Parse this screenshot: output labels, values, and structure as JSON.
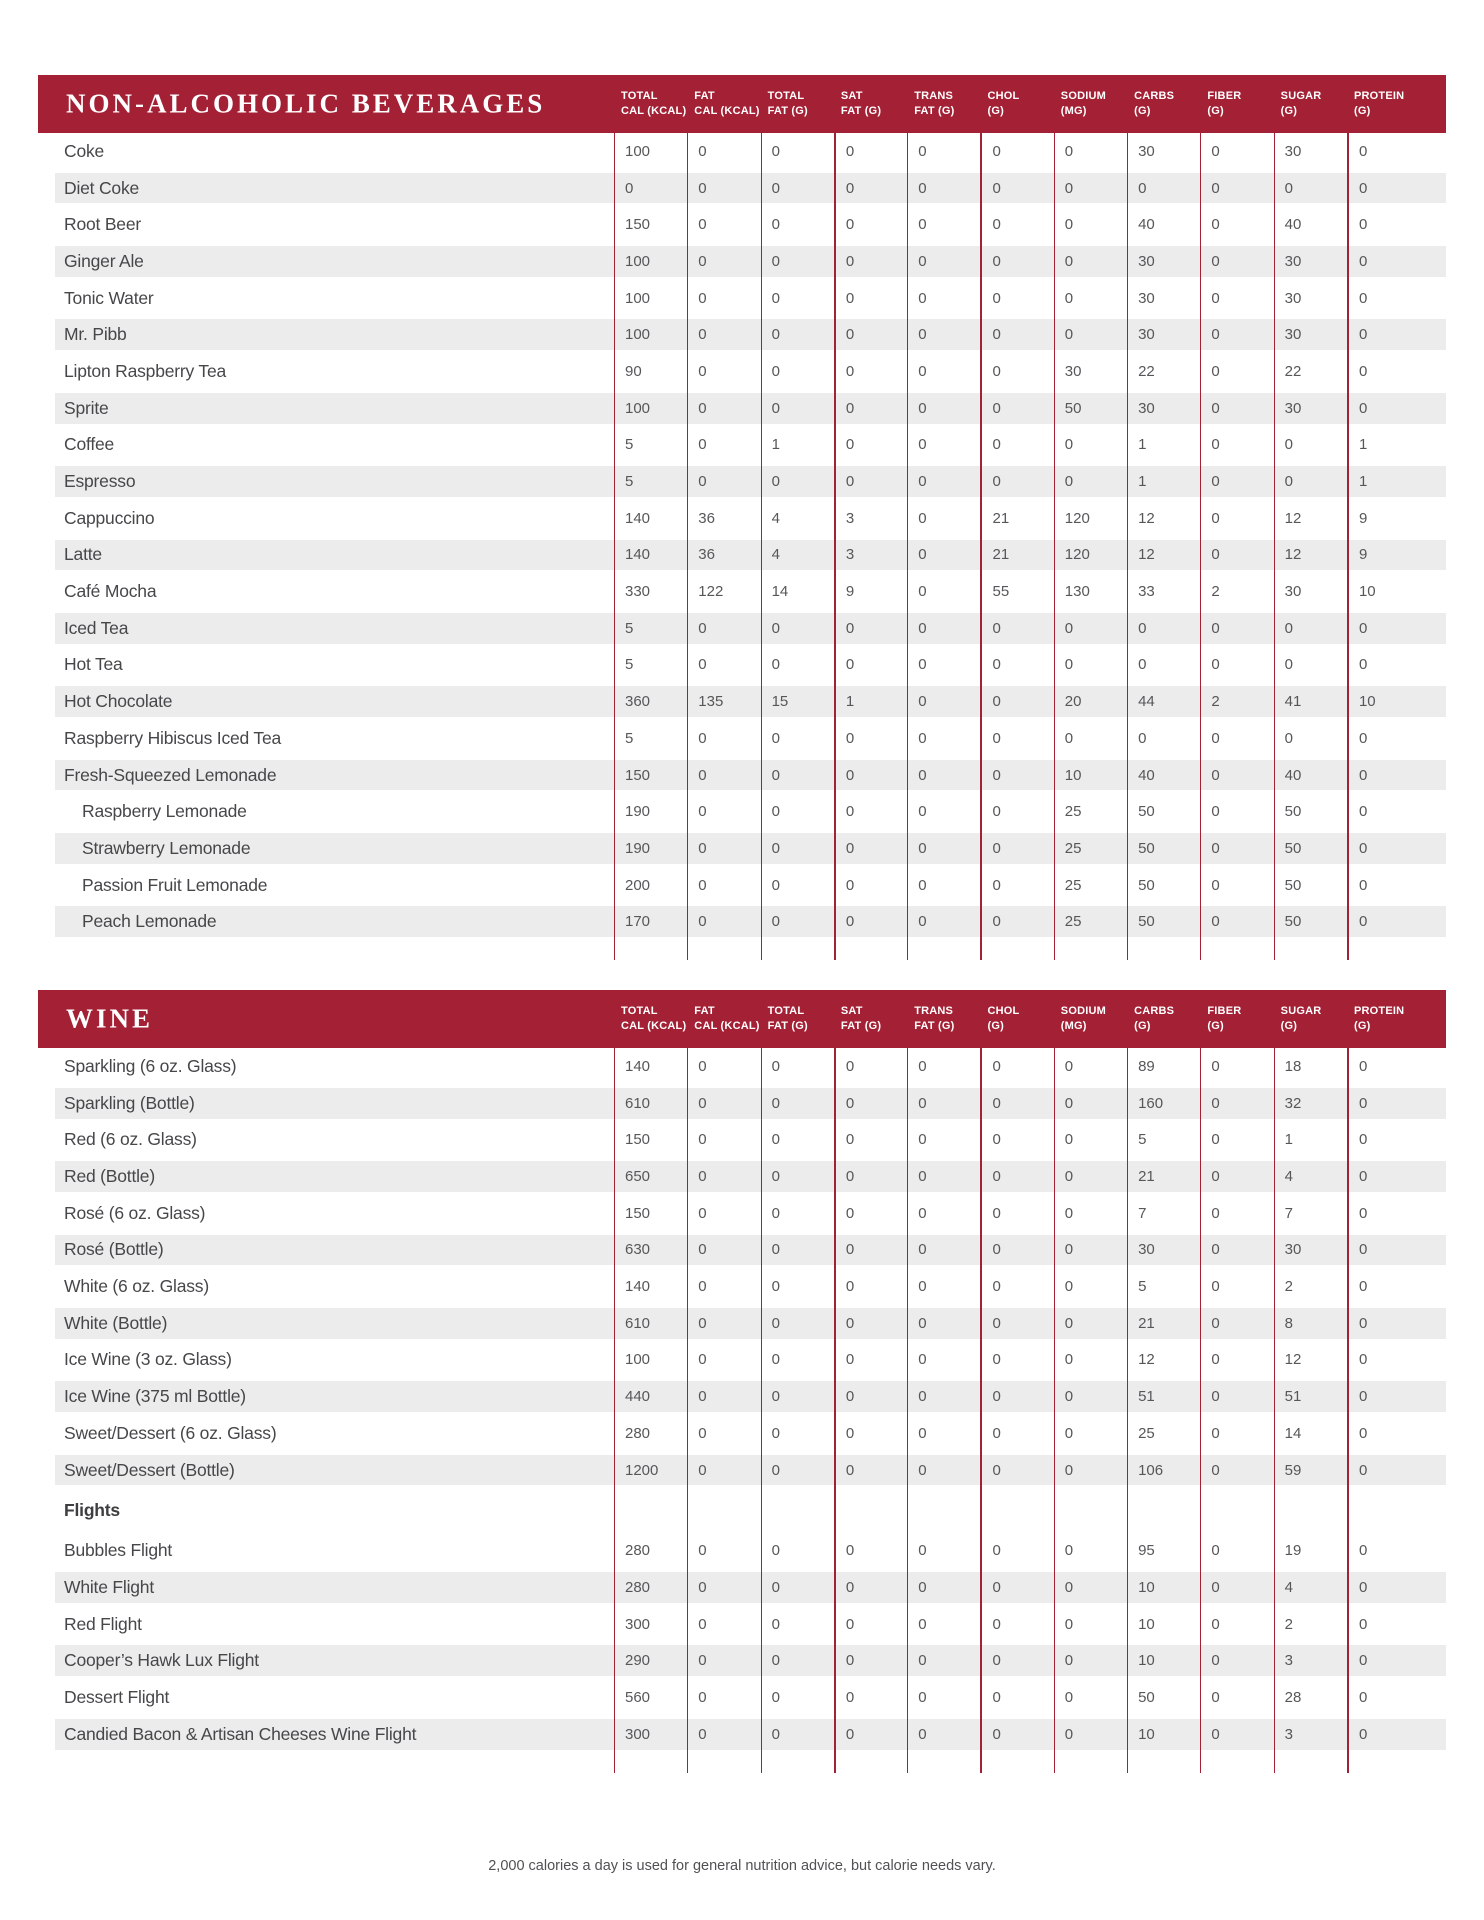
{
  "footer": "2,000 calories a day is used for general nutrition advice, but calorie needs vary.",
  "colors": {
    "accent": "#A32035",
    "stripe": "#ECECEC"
  },
  "column_headers": [
    {
      "line1": "TOTAL",
      "line2": "CAL (kcal)"
    },
    {
      "line1": "FAT",
      "line2": "CAL (kcal)"
    },
    {
      "line1": "TOTAL",
      "line2": "FAT (g)"
    },
    {
      "line1": "SAT",
      "line2": "FAT (g)"
    },
    {
      "line1": "TRANS",
      "line2": "FAT (g)"
    },
    {
      "line1": "CHOL",
      "line2": "(g)"
    },
    {
      "line1": "SODIUM",
      "line2": "(mg)"
    },
    {
      "line1": "CARBS",
      "line2": "(g)"
    },
    {
      "line1": "FIBER",
      "line2": "(g)"
    },
    {
      "line1": "SUGAR",
      "line2": "(g)"
    },
    {
      "line1": "PROTEIN",
      "line2": "(g)"
    }
  ],
  "tables": [
    {
      "title": "NON-ALCOHOLIC BEVERAGES",
      "rows": [
        {
          "name": "Coke",
          "values": [
            100,
            0,
            0,
            0,
            0,
            0,
            0,
            30,
            0,
            30,
            0
          ]
        },
        {
          "name": "Diet Coke",
          "values": [
            0,
            0,
            0,
            0,
            0,
            0,
            0,
            0,
            0,
            0,
            0
          ]
        },
        {
          "name": "Root Beer",
          "values": [
            150,
            0,
            0,
            0,
            0,
            0,
            0,
            40,
            0,
            40,
            0
          ]
        },
        {
          "name": "Ginger Ale",
          "values": [
            100,
            0,
            0,
            0,
            0,
            0,
            0,
            30,
            0,
            30,
            0
          ]
        },
        {
          "name": "Tonic Water",
          "values": [
            100,
            0,
            0,
            0,
            0,
            0,
            0,
            30,
            0,
            30,
            0
          ]
        },
        {
          "name": "Mr. Pibb",
          "values": [
            100,
            0,
            0,
            0,
            0,
            0,
            0,
            30,
            0,
            30,
            0
          ]
        },
        {
          "name": "Lipton Raspberry Tea",
          "values": [
            90,
            0,
            0,
            0,
            0,
            0,
            30,
            22,
            0,
            22,
            0
          ]
        },
        {
          "name": "Sprite",
          "values": [
            100,
            0,
            0,
            0,
            0,
            0,
            50,
            30,
            0,
            30,
            0
          ]
        },
        {
          "name": "Coffee",
          "values": [
            5,
            0,
            1,
            0,
            0,
            0,
            0,
            1,
            0,
            0,
            1
          ]
        },
        {
          "name": "Espresso",
          "values": [
            5,
            0,
            0,
            0,
            0,
            0,
            0,
            1,
            0,
            0,
            1
          ]
        },
        {
          "name": "Cappuccino",
          "values": [
            140,
            36,
            4,
            3,
            0,
            21,
            120,
            12,
            0,
            12,
            9
          ]
        },
        {
          "name": "Latte",
          "values": [
            140,
            36,
            4,
            3,
            0,
            21,
            120,
            12,
            0,
            12,
            9
          ]
        },
        {
          "name": "Café Mocha",
          "values": [
            330,
            122,
            14,
            9,
            0,
            55,
            130,
            33,
            2,
            30,
            10
          ]
        },
        {
          "name": "Iced Tea",
          "values": [
            5,
            0,
            0,
            0,
            0,
            0,
            0,
            0,
            0,
            0,
            0
          ]
        },
        {
          "name": "Hot Tea",
          "values": [
            5,
            0,
            0,
            0,
            0,
            0,
            0,
            0,
            0,
            0,
            0
          ]
        },
        {
          "name": "Hot Chocolate",
          "values": [
            360,
            135,
            15,
            1,
            0,
            0,
            20,
            44,
            2,
            41,
            10
          ]
        },
        {
          "name": "Raspberry Hibiscus Iced Tea",
          "values": [
            5,
            0,
            0,
            0,
            0,
            0,
            0,
            0,
            0,
            0,
            0
          ]
        },
        {
          "name": "Fresh-Squeezed Lemonade",
          "values": [
            150,
            0,
            0,
            0,
            0,
            0,
            10,
            40,
            0,
            40,
            0
          ]
        },
        {
          "name": "Raspberry Lemonade",
          "indent": true,
          "values": [
            190,
            0,
            0,
            0,
            0,
            0,
            25,
            50,
            0,
            50,
            0
          ]
        },
        {
          "name": "Strawberry Lemonade",
          "indent": true,
          "values": [
            190,
            0,
            0,
            0,
            0,
            0,
            25,
            50,
            0,
            50,
            0
          ]
        },
        {
          "name": "Passion Fruit Lemonade",
          "indent": true,
          "values": [
            200,
            0,
            0,
            0,
            0,
            0,
            25,
            50,
            0,
            50,
            0
          ]
        },
        {
          "name": "Peach Lemonade",
          "indent": true,
          "values": [
            170,
            0,
            0,
            0,
            0,
            0,
            25,
            50,
            0,
            50,
            0
          ]
        }
      ]
    },
    {
      "title": "WINE",
      "rows": [
        {
          "name": "Sparkling (6 oz. Glass)",
          "values": [
            140,
            0,
            0,
            0,
            0,
            0,
            0,
            89,
            0,
            18,
            0
          ]
        },
        {
          "name": "Sparkling (Bottle)",
          "values": [
            610,
            0,
            0,
            0,
            0,
            0,
            0,
            160,
            0,
            32,
            0
          ]
        },
        {
          "name": "Red (6 oz. Glass)",
          "values": [
            150,
            0,
            0,
            0,
            0,
            0,
            0,
            5,
            0,
            1,
            0
          ]
        },
        {
          "name": "Red (Bottle)",
          "values": [
            650,
            0,
            0,
            0,
            0,
            0,
            0,
            21,
            0,
            4,
            0
          ]
        },
        {
          "name": "Rosé (6 oz. Glass)",
          "values": [
            150,
            0,
            0,
            0,
            0,
            0,
            0,
            7,
            0,
            7,
            0
          ]
        },
        {
          "name": "Rosé (Bottle)",
          "values": [
            630,
            0,
            0,
            0,
            0,
            0,
            0,
            30,
            0,
            30,
            0
          ]
        },
        {
          "name": "White (6 oz. Glass)",
          "values": [
            140,
            0,
            0,
            0,
            0,
            0,
            0,
            5,
            0,
            2,
            0
          ]
        },
        {
          "name": "White (Bottle)",
          "values": [
            610,
            0,
            0,
            0,
            0,
            0,
            0,
            21,
            0,
            8,
            0
          ]
        },
        {
          "name": "Ice Wine (3 oz. Glass)",
          "values": [
            100,
            0,
            0,
            0,
            0,
            0,
            0,
            12,
            0,
            12,
            0
          ]
        },
        {
          "name": "Ice Wine (375 ml Bottle)",
          "values": [
            440,
            0,
            0,
            0,
            0,
            0,
            0,
            51,
            0,
            51,
            0
          ]
        },
        {
          "name": "Sweet/Dessert (6 oz. Glass)",
          "values": [
            280,
            0,
            0,
            0,
            0,
            0,
            0,
            25,
            0,
            14,
            0
          ]
        },
        {
          "name": "Sweet/Dessert (Bottle)",
          "values": [
            1200,
            0,
            0,
            0,
            0,
            0,
            0,
            106,
            0,
            59,
            0
          ]
        },
        {
          "name": "Flights",
          "subheader": true,
          "values": []
        },
        {
          "name": "Bubbles Flight",
          "values": [
            280,
            0,
            0,
            0,
            0,
            0,
            0,
            95,
            0,
            19,
            0
          ]
        },
        {
          "name": "White Flight",
          "values": [
            280,
            0,
            0,
            0,
            0,
            0,
            0,
            10,
            0,
            4,
            0
          ]
        },
        {
          "name": "Red Flight",
          "values": [
            300,
            0,
            0,
            0,
            0,
            0,
            0,
            10,
            0,
            2,
            0
          ]
        },
        {
          "name": "Cooper’s Hawk Lux Flight",
          "values": [
            290,
            0,
            0,
            0,
            0,
            0,
            0,
            10,
            0,
            3,
            0
          ]
        },
        {
          "name": "Dessert Flight",
          "values": [
            560,
            0,
            0,
            0,
            0,
            0,
            0,
            50,
            0,
            28,
            0
          ]
        },
        {
          "name": "Candied Bacon & Artisan Cheeses Wine Flight",
          "values": [
            300,
            0,
            0,
            0,
            0,
            0,
            0,
            10,
            0,
            3,
            0
          ]
        }
      ]
    }
  ]
}
